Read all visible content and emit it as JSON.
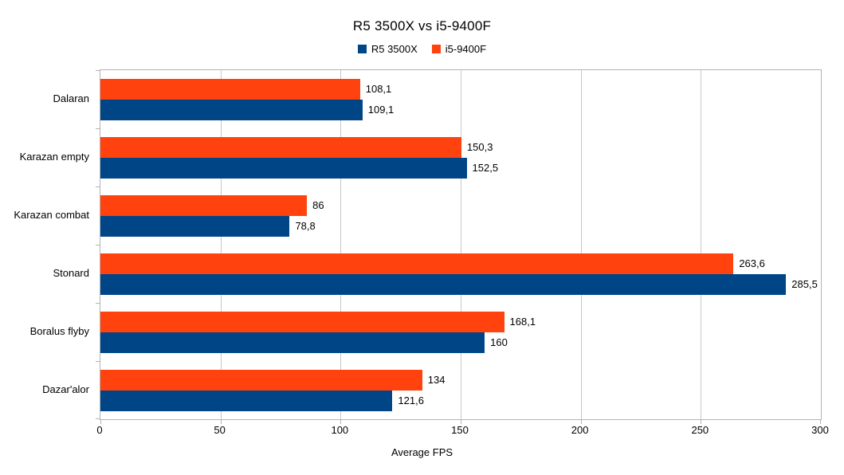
{
  "page": {
    "background": "#ffffff"
  },
  "chart_data": {
    "type": "bar",
    "orientation": "horizontal",
    "title": "R5 3500X vs i5-9400F",
    "xlabel": "Average FPS",
    "xlim": [
      0,
      300
    ],
    "xticks": [
      0,
      50,
      100,
      150,
      200,
      250,
      300
    ],
    "grid": true,
    "legend_position": "top",
    "axis_color": "#b3b3b3",
    "grid_color": "#c8c8c8",
    "text_color": "#000000",
    "categories": [
      "Dalaran",
      "Karazan empty",
      "Karazan combat",
      "Stonard",
      "Boralus flyby",
      "Dazar'alor"
    ],
    "series": [
      {
        "name": "R5 3500X",
        "color": "#004586",
        "values": [
          109.1,
          152.5,
          78.8,
          285.5,
          160,
          121.6
        ],
        "labels": [
          "109,1",
          "152,5",
          "78,8",
          "285,5",
          "160",
          "121,6"
        ]
      },
      {
        "name": "i5-9400F",
        "color": "#FF420E",
        "values": [
          108.1,
          150.3,
          86,
          263.6,
          168.1,
          134
        ],
        "labels": [
          "108,1",
          "150,3",
          "86",
          "263,6",
          "168,1",
          "134"
        ]
      }
    ]
  }
}
